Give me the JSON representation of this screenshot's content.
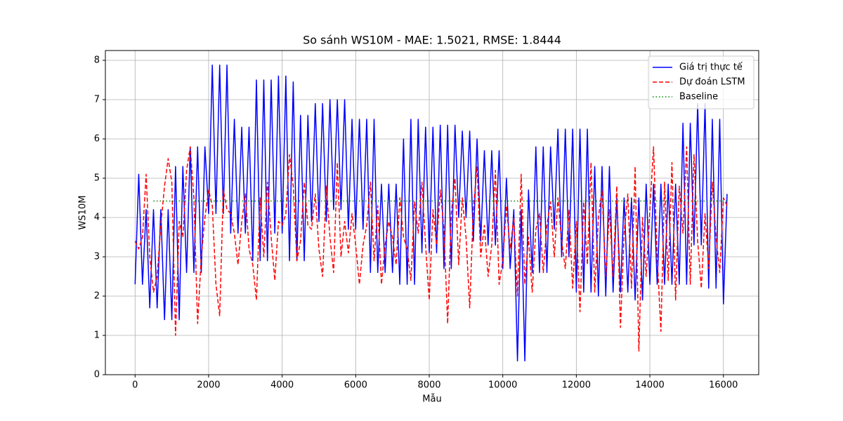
{
  "chart_data": {
    "type": "line",
    "title": "So sánh WS10M - MAE: 1.5021, RMSE: 1.8444",
    "xlabel": "Mẫu",
    "ylabel": "WS10M",
    "xlim": [
      -808,
      16960
    ],
    "ylim": [
      0,
      8.25
    ],
    "xticks": [
      0,
      2000,
      4000,
      6000,
      8000,
      10000,
      12000,
      14000,
      16000
    ],
    "yticks": [
      0,
      1,
      2,
      3,
      4,
      5,
      6,
      7,
      8
    ],
    "grid": true,
    "legend": "upper right",
    "x": [
      0,
      100,
      200,
      300,
      400,
      500,
      600,
      700,
      800,
      900,
      1000,
      1100,
      1200,
      1300,
      1400,
      1500,
      1600,
      1700,
      1800,
      1900,
      2000,
      2100,
      2200,
      2300,
      2400,
      2500,
      2600,
      2700,
      2800,
      2900,
      3000,
      3100,
      3200,
      3300,
      3400,
      3500,
      3600,
      3700,
      3800,
      3900,
      4000,
      4100,
      4200,
      4300,
      4400,
      4500,
      4600,
      4700,
      4800,
      4900,
      5000,
      5100,
      5200,
      5300,
      5400,
      5500,
      5600,
      5700,
      5800,
      5900,
      6000,
      6100,
      6200,
      6300,
      6400,
      6500,
      6600,
      6700,
      6800,
      6900,
      7000,
      7100,
      7200,
      7300,
      7400,
      7500,
      7600,
      7700,
      7800,
      7900,
      8000,
      8100,
      8200,
      8300,
      8400,
      8500,
      8600,
      8700,
      8800,
      8900,
      9000,
      9100,
      9200,
      9300,
      9400,
      9500,
      9600,
      9700,
      9800,
      9900,
      10000,
      10100,
      10200,
      10300,
      10400,
      10500,
      10600,
      10700,
      10800,
      10900,
      11000,
      11100,
      11200,
      11300,
      11400,
      11500,
      11600,
      11700,
      11800,
      11900,
      12000,
      12100,
      12200,
      12300,
      12400,
      12500,
      12600,
      12700,
      12800,
      12900,
      13000,
      13100,
      13200,
      13300,
      13400,
      13500,
      13600,
      13700,
      13800,
      13900,
      14000,
      14100,
      14200,
      14300,
      14400,
      14500,
      14600,
      14700,
      14800,
      14900,
      15000,
      15100,
      15200,
      15300,
      15400,
      15500,
      15600,
      15700,
      15800,
      15900,
      16000,
      16100
    ],
    "series": [
      {
        "name": "Giá trị thực tế",
        "color": "#0000ff",
        "style": "solid",
        "values": [
          2.3,
          5.1,
          2.3,
          4.2,
          1.7,
          4.2,
          1.7,
          4.2,
          1.4,
          4.2,
          1.4,
          5.3,
          1.4,
          5.3,
          2.6,
          5.8,
          2.6,
          5.8,
          2.6,
          5.8,
          4.1,
          7.88,
          4.1,
          7.88,
          4.1,
          7.88,
          3.6,
          6.5,
          3.6,
          6.3,
          3.6,
          6.3,
          2.9,
          7.5,
          2.9,
          7.5,
          2.9,
          7.5,
          3.6,
          7.6,
          3.6,
          7.6,
          2.9,
          7.45,
          2.9,
          6.6,
          2.9,
          6.6,
          3.9,
          6.9,
          3.9,
          6.9,
          3.9,
          7.0,
          4.2,
          7.0,
          4.2,
          7.0,
          3.7,
          6.5,
          3.7,
          6.5,
          3.7,
          6.5,
          2.6,
          6.5,
          2.6,
          4.85,
          2.6,
          4.85,
          2.6,
          4.85,
          2.3,
          6.0,
          2.3,
          6.5,
          2.3,
          6.5,
          3.1,
          6.3,
          3.1,
          6.3,
          3.1,
          6.35,
          2.7,
          6.35,
          2.7,
          6.35,
          4.0,
          6.2,
          4.0,
          6.2,
          3.4,
          6.0,
          3.4,
          5.7,
          3.3,
          5.7,
          3.3,
          5.7,
          2.7,
          5.0,
          2.7,
          4.2,
          0.35,
          4.2,
          0.35,
          4.7,
          2.6,
          5.8,
          2.6,
          5.8,
          2.6,
          5.8,
          3.7,
          6.25,
          3.0,
          6.25,
          3.0,
          6.25,
          2.1,
          6.25,
          2.1,
          6.25,
          2.1,
          5.3,
          2.0,
          5.3,
          2.0,
          5.3,
          2.1,
          4.5,
          2.1,
          4.5,
          2.1,
          4.5,
          1.9,
          4.5,
          1.9,
          4.85,
          2.3,
          4.85,
          2.3,
          4.85,
          2.3,
          4.85,
          2.3,
          4.85,
          2.3,
          6.4,
          2.3,
          6.4,
          3.3,
          6.9,
          3.3,
          6.9,
          2.2,
          6.5,
          2.2,
          6.5,
          1.8,
          4.6
        ]
      },
      {
        "name": "Dự đoán LSTM",
        "color": "#ff0000",
        "style": "dashed",
        "values": [
          3.4,
          3.2,
          3.5,
          5.1,
          3.0,
          2.1,
          2.5,
          3.8,
          4.8,
          5.5,
          4.9,
          1.0,
          3.9,
          3.5,
          5.2,
          5.8,
          4.5,
          1.3,
          3.0,
          4.0,
          4.7,
          4.3,
          2.3,
          1.5,
          4.7,
          4.2,
          4.1,
          3.6,
          2.8,
          3.9,
          4.6,
          3.2,
          2.8,
          1.9,
          4.5,
          3.0,
          4.9,
          3.5,
          2.4,
          3.9,
          3.8,
          4.1,
          5.6,
          4.8,
          2.9,
          3.4,
          4.9,
          3.8,
          3.7,
          4.6,
          3.2,
          2.5,
          4.8,
          3.5,
          2.6,
          5.4,
          3.0,
          3.9,
          3.1,
          4.1,
          3.3,
          2.3,
          3.3,
          3.8,
          4.9,
          2.9,
          4.3,
          2.3,
          3.3,
          3.9,
          3.5,
          2.8,
          4.5,
          3.5,
          3.2,
          2.4,
          4.4,
          3.6,
          4.9,
          3.3,
          1.9,
          4.2,
          3.3,
          4.7,
          3.7,
          1.3,
          4.1,
          5.0,
          2.8,
          4.5,
          3.5,
          1.7,
          4.2,
          5.3,
          3.0,
          3.8,
          2.5,
          3.3,
          5.2,
          2.3,
          2.9,
          4.3,
          3.2,
          4.0,
          2.0,
          5.1,
          2.3,
          3.5,
          2.1,
          3.7,
          4.1,
          2.6,
          3.8,
          4.4,
          3.0,
          4.5,
          3.4,
          2.7,
          4.2,
          2.2,
          3.9,
          1.6,
          4.4,
          2.8,
          5.4,
          2.1,
          4.0,
          4.7,
          2.5,
          4.2,
          2.5,
          4.8,
          1.2,
          3.6,
          4.6,
          2.2,
          5.3,
          0.6,
          4.0,
          2.5,
          4.2,
          5.8,
          3.0,
          1.1,
          4.9,
          2.4,
          5.4,
          1.9,
          4.8,
          3.6,
          5.8,
          2.3,
          5.6,
          3.4,
          2.2,
          4.1,
          2.7,
          4.9,
          3.5,
          2.6,
          4.5,
          4.3
        ]
      },
      {
        "name": "Baseline",
        "color": "#008000",
        "style": "dotted",
        "x": [
          500,
          16100
        ],
        "values": [
          4.42,
          4.42
        ]
      }
    ]
  }
}
